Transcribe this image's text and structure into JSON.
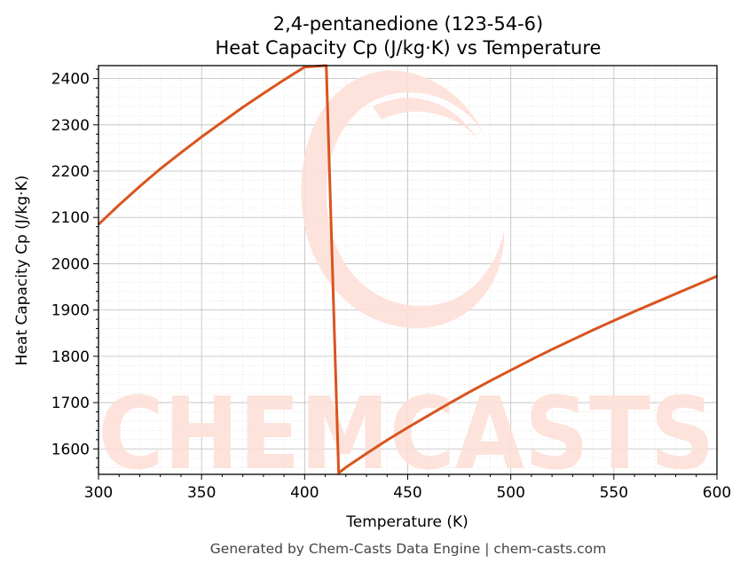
{
  "chart_data": {
    "type": "line",
    "title": [
      "2,4-pentanedione (123-54-6)",
      "Heat Capacity Cp (J/kg·K) vs Temperature"
    ],
    "xlabel": "Temperature (K)",
    "ylabel": "Heat Capacity Cp (J/kg·K)",
    "xlim": [
      300,
      600
    ],
    "ylim": [
      1545,
      2428
    ],
    "xticks": [
      300,
      350,
      400,
      450,
      500,
      550,
      600
    ],
    "yticks": [
      1600,
      1700,
      1800,
      1900,
      2000,
      2100,
      2200,
      2300,
      2400
    ],
    "grid": true,
    "series": [
      {
        "color": "#d9541e",
        "x": [
          300,
          310,
          320,
          330,
          340,
          350,
          360,
          370,
          380,
          390,
          400,
          410,
          410.5,
          416.5,
          420,
          430,
          440,
          450,
          460,
          470,
          480,
          490,
          500,
          510,
          520,
          530,
          540,
          550,
          560,
          570,
          580,
          590,
          600
        ],
        "y": [
          2085,
          2127,
          2167,
          2205,
          2240,
          2274,
          2306,
          2338,
          2368,
          2397,
          2425,
          2428,
          2428,
          1548,
          1560,
          1590,
          1619,
          1646,
          1672,
          1698,
          1723,
          1747,
          1770,
          1793,
          1815,
          1836,
          1857,
          1877,
          1897,
          1916,
          1935,
          1954,
          1973
        ]
      }
    ]
  },
  "watermark": {
    "text": "CHEMCASTS",
    "color": "#fde0d8"
  },
  "footer": "Generated by Chem-Casts Data Engine | chem-casts.com"
}
